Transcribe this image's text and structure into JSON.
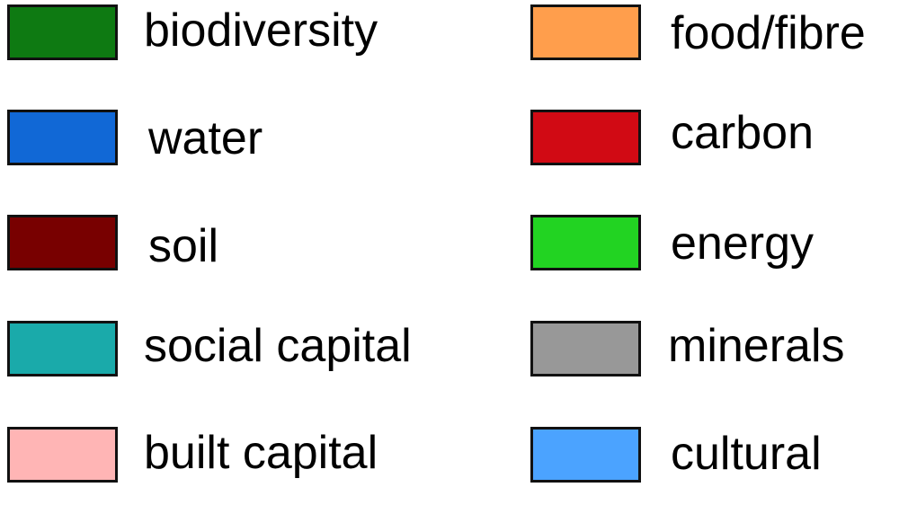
{
  "legend": {
    "left_column": [
      {
        "label": "biodiversity",
        "color": "#0E7A12"
      },
      {
        "label": "water",
        "color": "#1168D6"
      },
      {
        "label": "soil",
        "color": "#780000"
      },
      {
        "label": "social capital",
        "color": "#1AAAAA"
      },
      {
        "label": "built capital",
        "color": "#FFB5B5"
      }
    ],
    "right_column": [
      {
        "label": "food/fibre",
        "color": "#FF9E4C"
      },
      {
        "label": "carbon",
        "color": "#D10A14"
      },
      {
        "label": "energy",
        "color": "#22D322"
      },
      {
        "label": "minerals",
        "color": "#989898"
      },
      {
        "label": "cultural",
        "color": "#4BA3FF"
      }
    ]
  }
}
